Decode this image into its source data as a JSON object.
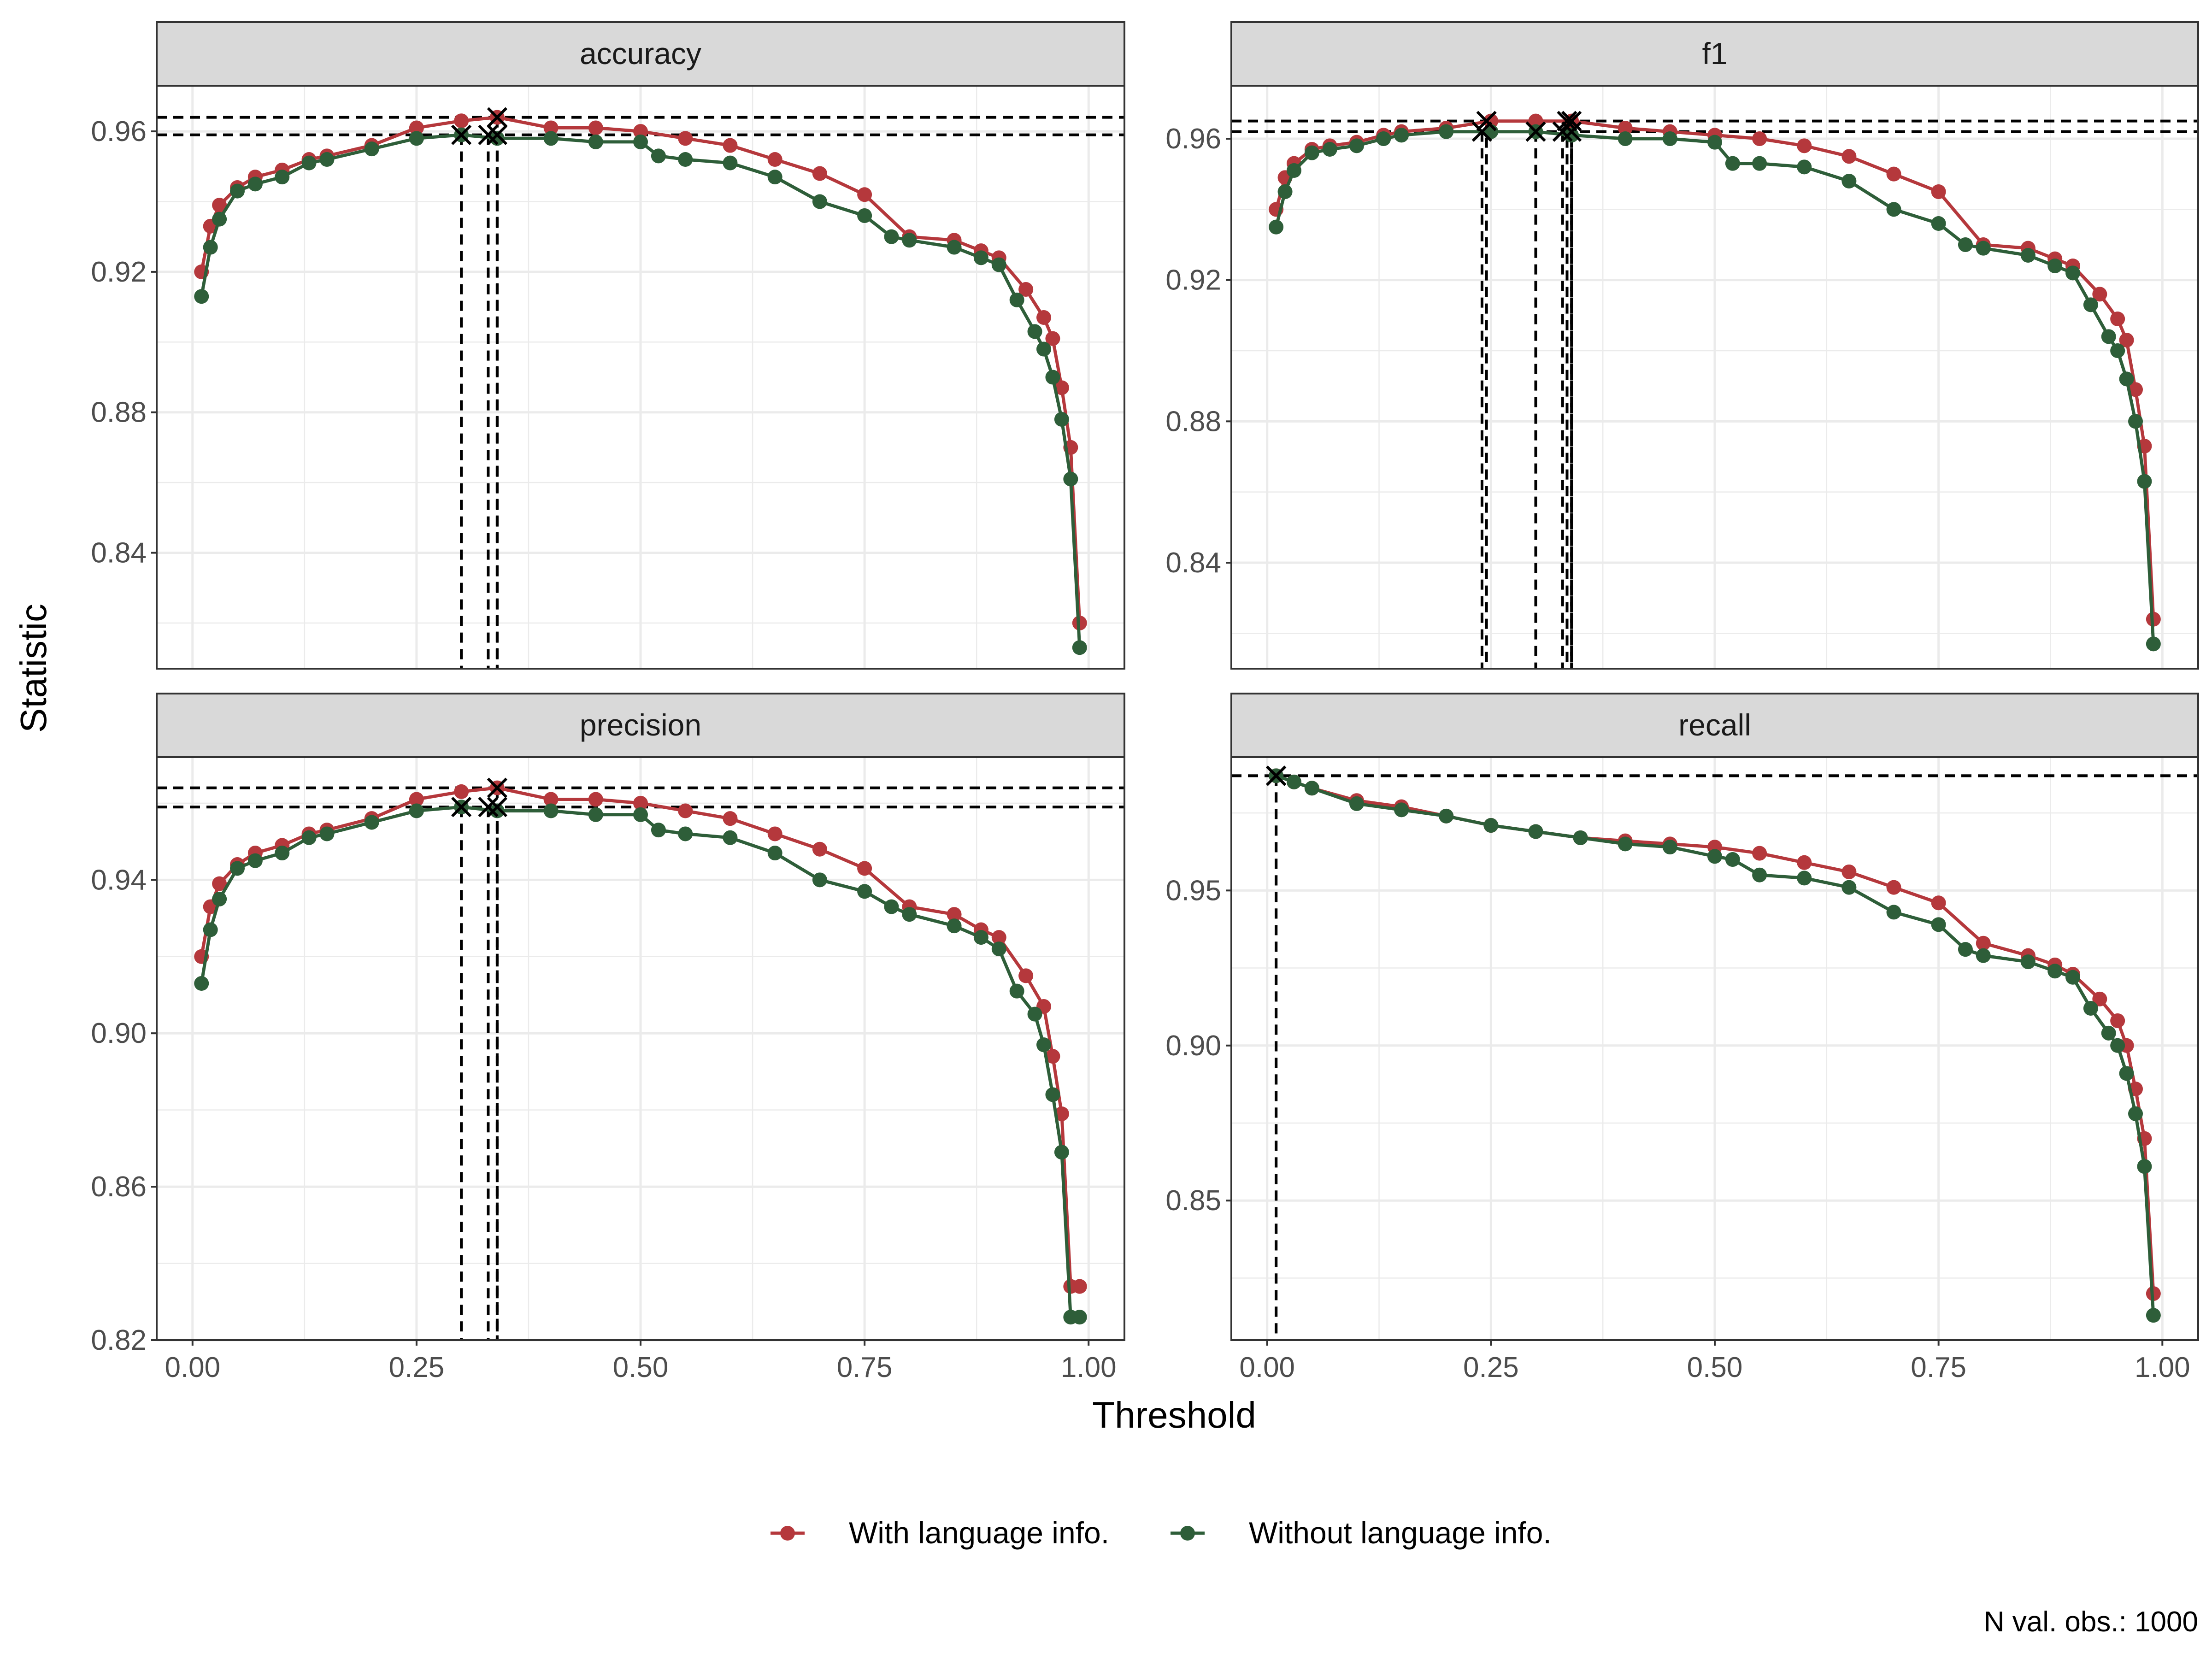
{
  "chart_data": {
    "type": "line",
    "xlabel": "Threshold",
    "ylabel": "Statistic",
    "caption": "N val. obs.: 1000",
    "colors": {
      "with": "#b5383c",
      "without": "#2e5e39",
      "marker": "#000000",
      "strip_bg": "#d9d9d9",
      "grid": "#ebebeb"
    },
    "legend": {
      "position": "bottom",
      "entries": [
        {
          "label": "With language info.",
          "color": "#b5383c"
        },
        {
          "label": "Without language info.",
          "color": "#2e5e39"
        }
      ]
    },
    "x_ticks": [
      "0.00",
      "0.25",
      "0.50",
      "0.75",
      "1.00"
    ],
    "xlim": [
      -0.04,
      1.04
    ],
    "panels": [
      {
        "title": "accuracy",
        "ylim": [
          0.807,
          0.973
        ],
        "y_ticks": [
          "0.84",
          "0.88",
          "0.92",
          "0.96"
        ],
        "optimal": {
          "with": {
            "thresholds": [
              0.34
            ],
            "value": 0.964
          },
          "without": {
            "thresholds": [
              0.3,
              0.33,
              0.34
            ],
            "value": 0.959
          }
        },
        "series": [
          {
            "name": "With language info.",
            "x": [
              0.01,
              0.02,
              0.03,
              0.05,
              0.07,
              0.1,
              0.13,
              0.15,
              0.2,
              0.25,
              0.3,
              0.34,
              0.4,
              0.45,
              0.5,
              0.55,
              0.6,
              0.65,
              0.7,
              0.75,
              0.8,
              0.85,
              0.88,
              0.9,
              0.93,
              0.95,
              0.96,
              0.97,
              0.98,
              0.99
            ],
            "y": [
              0.92,
              0.933,
              0.939,
              0.944,
              0.947,
              0.949,
              0.952,
              0.953,
              0.956,
              0.961,
              0.963,
              0.964,
              0.961,
              0.961,
              0.96,
              0.958,
              0.956,
              0.952,
              0.948,
              0.942,
              0.93,
              0.929,
              0.926,
              0.924,
              0.915,
              0.907,
              0.901,
              0.887,
              0.87,
              0.82
            ]
          },
          {
            "name": "Without language info.",
            "x": [
              0.01,
              0.02,
              0.03,
              0.05,
              0.07,
              0.1,
              0.13,
              0.15,
              0.2,
              0.25,
              0.3,
              0.34,
              0.4,
              0.45,
              0.5,
              0.52,
              0.55,
              0.6,
              0.65,
              0.7,
              0.75,
              0.78,
              0.8,
              0.85,
              0.88,
              0.9,
              0.92,
              0.94,
              0.95,
              0.96,
              0.97,
              0.98,
              0.99
            ],
            "y": [
              0.913,
              0.927,
              0.935,
              0.943,
              0.945,
              0.947,
              0.951,
              0.952,
              0.955,
              0.958,
              0.959,
              0.958,
              0.958,
              0.957,
              0.957,
              0.953,
              0.952,
              0.951,
              0.947,
              0.94,
              0.936,
              0.93,
              0.929,
              0.927,
              0.924,
              0.922,
              0.912,
              0.903,
              0.898,
              0.89,
              0.878,
              0.861,
              0.813
            ]
          }
        ]
      },
      {
        "title": "f1",
        "ylim": [
          0.81,
          0.975
        ],
        "y_ticks": [
          "0.84",
          "0.88",
          "0.92",
          "0.96"
        ],
        "optimal": {
          "with": {
            "thresholds": [
              0.245,
              0.335,
              0.34
            ],
            "value": 0.965
          },
          "without": {
            "thresholds": [
              0.24,
              0.3,
              0.33,
              0.34
            ],
            "value": 0.962
          }
        },
        "series": [
          {
            "name": "With language info.",
            "x": [
              0.01,
              0.02,
              0.03,
              0.05,
              0.07,
              0.1,
              0.13,
              0.15,
              0.2,
              0.25,
              0.3,
              0.34,
              0.4,
              0.45,
              0.5,
              0.55,
              0.6,
              0.65,
              0.7,
              0.75,
              0.8,
              0.85,
              0.88,
              0.9,
              0.93,
              0.95,
              0.96,
              0.97,
              0.98,
              0.99
            ],
            "y": [
              0.94,
              0.949,
              0.953,
              0.957,
              0.958,
              0.959,
              0.961,
              0.962,
              0.963,
              0.965,
              0.965,
              0.965,
              0.963,
              0.962,
              0.961,
              0.96,
              0.958,
              0.955,
              0.95,
              0.945,
              0.93,
              0.929,
              0.926,
              0.924,
              0.916,
              0.909,
              0.903,
              0.889,
              0.873,
              0.824
            ]
          },
          {
            "name": "Without language info.",
            "x": [
              0.01,
              0.02,
              0.03,
              0.05,
              0.07,
              0.1,
              0.13,
              0.15,
              0.2,
              0.25,
              0.3,
              0.34,
              0.4,
              0.45,
              0.5,
              0.52,
              0.55,
              0.6,
              0.65,
              0.7,
              0.75,
              0.78,
              0.8,
              0.85,
              0.88,
              0.9,
              0.92,
              0.94,
              0.95,
              0.96,
              0.97,
              0.98,
              0.99
            ],
            "y": [
              0.935,
              0.945,
              0.951,
              0.956,
              0.957,
              0.958,
              0.96,
              0.961,
              0.962,
              0.962,
              0.962,
              0.961,
              0.96,
              0.96,
              0.959,
              0.953,
              0.953,
              0.952,
              0.948,
              0.94,
              0.936,
              0.93,
              0.929,
              0.927,
              0.924,
              0.922,
              0.913,
              0.904,
              0.9,
              0.892,
              0.88,
              0.863,
              0.817
            ]
          }
        ]
      },
      {
        "title": "precision",
        "ylim": [
          0.82,
          0.972
        ],
        "y_ticks": [
          "0.82",
          "0.86",
          "0.90",
          "0.94"
        ],
        "optimal": {
          "with": {
            "thresholds": [
              0.34
            ],
            "value": 0.964
          },
          "without": {
            "thresholds": [
              0.3,
              0.33,
              0.34
            ],
            "value": 0.959
          }
        },
        "series": [
          {
            "name": "With language info.",
            "x": [
              0.01,
              0.02,
              0.03,
              0.05,
              0.07,
              0.1,
              0.13,
              0.15,
              0.2,
              0.25,
              0.3,
              0.34,
              0.4,
              0.45,
              0.5,
              0.55,
              0.6,
              0.65,
              0.7,
              0.75,
              0.8,
              0.85,
              0.88,
              0.9,
              0.93,
              0.95,
              0.96,
              0.97,
              0.98,
              0.99
            ],
            "y": [
              0.92,
              0.933,
              0.939,
              0.944,
              0.947,
              0.949,
              0.952,
              0.953,
              0.956,
              0.961,
              0.963,
              0.964,
              0.961,
              0.961,
              0.96,
              0.958,
              0.956,
              0.952,
              0.948,
              0.943,
              0.933,
              0.931,
              0.927,
              0.925,
              0.915,
              0.907,
              0.894,
              0.879,
              0.834,
              0.834
            ]
          },
          {
            "name": "Without language info.",
            "x": [
              0.01,
              0.02,
              0.03,
              0.05,
              0.07,
              0.1,
              0.13,
              0.15,
              0.2,
              0.25,
              0.3,
              0.34,
              0.4,
              0.45,
              0.5,
              0.52,
              0.55,
              0.6,
              0.65,
              0.7,
              0.75,
              0.78,
              0.8,
              0.85,
              0.88,
              0.9,
              0.92,
              0.94,
              0.95,
              0.96,
              0.97,
              0.98,
              0.99
            ],
            "y": [
              0.913,
              0.927,
              0.935,
              0.943,
              0.945,
              0.947,
              0.951,
              0.952,
              0.955,
              0.958,
              0.959,
              0.958,
              0.958,
              0.957,
              0.957,
              0.953,
              0.952,
              0.951,
              0.947,
              0.94,
              0.937,
              0.933,
              0.931,
              0.928,
              0.925,
              0.922,
              0.911,
              0.905,
              0.897,
              0.884,
              0.869,
              0.826,
              0.826
            ]
          }
        ]
      },
      {
        "title": "recall",
        "ylim": [
          0.805,
          0.993
        ],
        "y_ticks": [
          "0.85",
          "0.90",
          "0.95"
        ],
        "optimal": {
          "with": {
            "thresholds": [
              0.01
            ],
            "value": 0.987
          },
          "without": {
            "thresholds": [
              0.01
            ],
            "value": 0.987
          }
        },
        "series": [
          {
            "name": "With language info.",
            "x": [
              0.01,
              0.03,
              0.05,
              0.1,
              0.15,
              0.2,
              0.25,
              0.3,
              0.35,
              0.4,
              0.45,
              0.5,
              0.55,
              0.6,
              0.65,
              0.7,
              0.75,
              0.8,
              0.85,
              0.88,
              0.9,
              0.93,
              0.95,
              0.96,
              0.97,
              0.98,
              0.99
            ],
            "y": [
              0.987,
              0.985,
              0.983,
              0.979,
              0.977,
              0.974,
              0.971,
              0.969,
              0.967,
              0.966,
              0.965,
              0.964,
              0.962,
              0.959,
              0.956,
              0.951,
              0.946,
              0.933,
              0.929,
              0.926,
              0.923,
              0.915,
              0.908,
              0.9,
              0.886,
              0.87,
              0.82
            ]
          },
          {
            "name": "Without language info.",
            "x": [
              0.01,
              0.03,
              0.05,
              0.1,
              0.15,
              0.2,
              0.25,
              0.3,
              0.35,
              0.4,
              0.45,
              0.5,
              0.52,
              0.55,
              0.6,
              0.65,
              0.7,
              0.75,
              0.78,
              0.8,
              0.85,
              0.88,
              0.9,
              0.92,
              0.94,
              0.95,
              0.96,
              0.97,
              0.98,
              0.99
            ],
            "y": [
              0.987,
              0.985,
              0.983,
              0.978,
              0.976,
              0.974,
              0.971,
              0.969,
              0.967,
              0.965,
              0.964,
              0.961,
              0.96,
              0.955,
              0.954,
              0.951,
              0.943,
              0.939,
              0.931,
              0.929,
              0.927,
              0.924,
              0.922,
              0.912,
              0.904,
              0.9,
              0.891,
              0.878,
              0.861,
              0.813
            ]
          }
        ]
      }
    ]
  }
}
